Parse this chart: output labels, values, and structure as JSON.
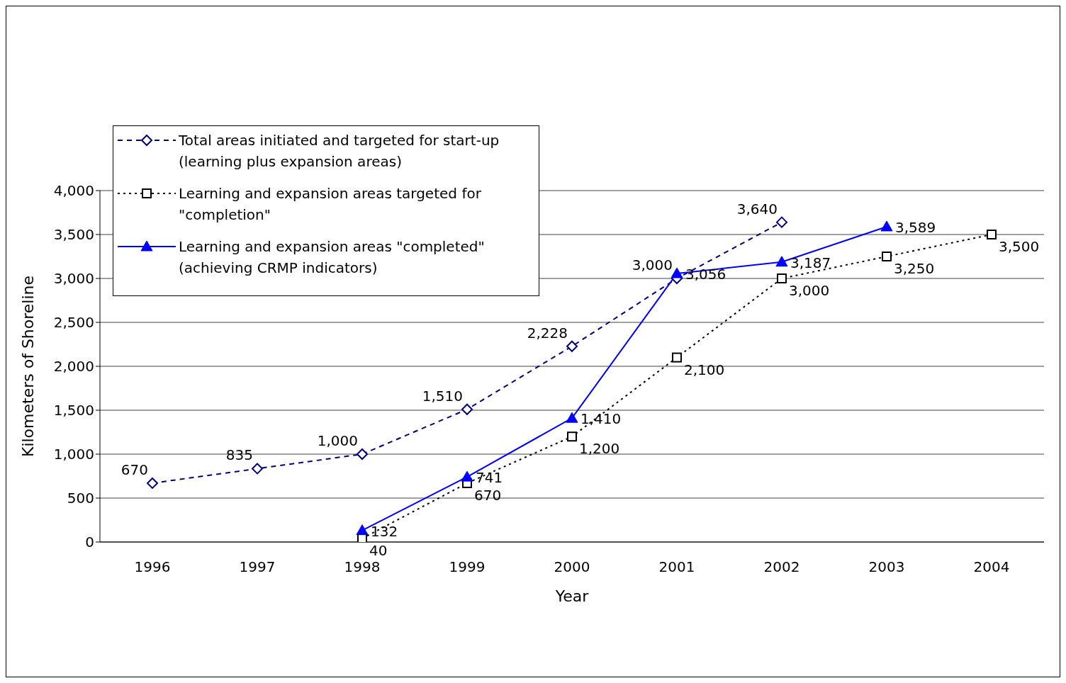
{
  "chart_data": {
    "type": "line",
    "xlabel": "Year",
    "ylabel": "Kilometers of Shoreline",
    "categories": [
      "1996",
      "1997",
      "1998",
      "1999",
      "2000",
      "2001",
      "2002",
      "2003",
      "2004"
    ],
    "series": [
      {
        "name": "Total areas initiated and targeted for start-up (learning plus expansion areas)",
        "color": "#000080",
        "marker": "diamond",
        "line_style": "dashed",
        "values": [
          670,
          835,
          1000,
          1510,
          2228,
          3000,
          3640,
          null,
          null
        ],
        "value_labels": [
          "670",
          "835",
          "1,000",
          "1,510",
          "2,228",
          "3,000",
          "3,640",
          null,
          null
        ]
      },
      {
        "name": "Learning and expansion areas targeted for \"completion\"",
        "color": "#000000",
        "marker": "square",
        "line_style": "dotted",
        "values": [
          null,
          null,
          40,
          670,
          1200,
          2100,
          3000,
          3250,
          3500
        ],
        "value_labels": [
          null,
          null,
          "40",
          "670",
          "1,200",
          "2,100",
          "3,000",
          "3,250",
          "3,500"
        ]
      },
      {
        "name": "Learning and expansion areas \"completed\" (achieving CRMP indicators)",
        "color": "#0000ff",
        "marker": "triangle",
        "line_style": "solid",
        "values": [
          null,
          null,
          132,
          741,
          1410,
          3056,
          3187,
          3589,
          null
        ],
        "value_labels": [
          null,
          null,
          "132",
          "741",
          "1,410",
          "3,056",
          "3,187",
          "3,589",
          null
        ]
      }
    ],
    "ylim": [
      0,
      4000
    ],
    "yticks": [
      0,
      500,
      {
        "value": 1000,
        "label": "1,000"
      },
      {
        "value": 1500,
        "label": "1,500"
      },
      {
        "value": 2000,
        "label": "2,000"
      },
      {
        "value": 2500,
        "label": "2,500"
      },
      {
        "value": 3000,
        "label": "3,000"
      },
      {
        "value": 3500,
        "label": "3,500"
      },
      {
        "value": 4000,
        "label": "4,000"
      }
    ],
    "grid": "y",
    "legend": "top left"
  }
}
